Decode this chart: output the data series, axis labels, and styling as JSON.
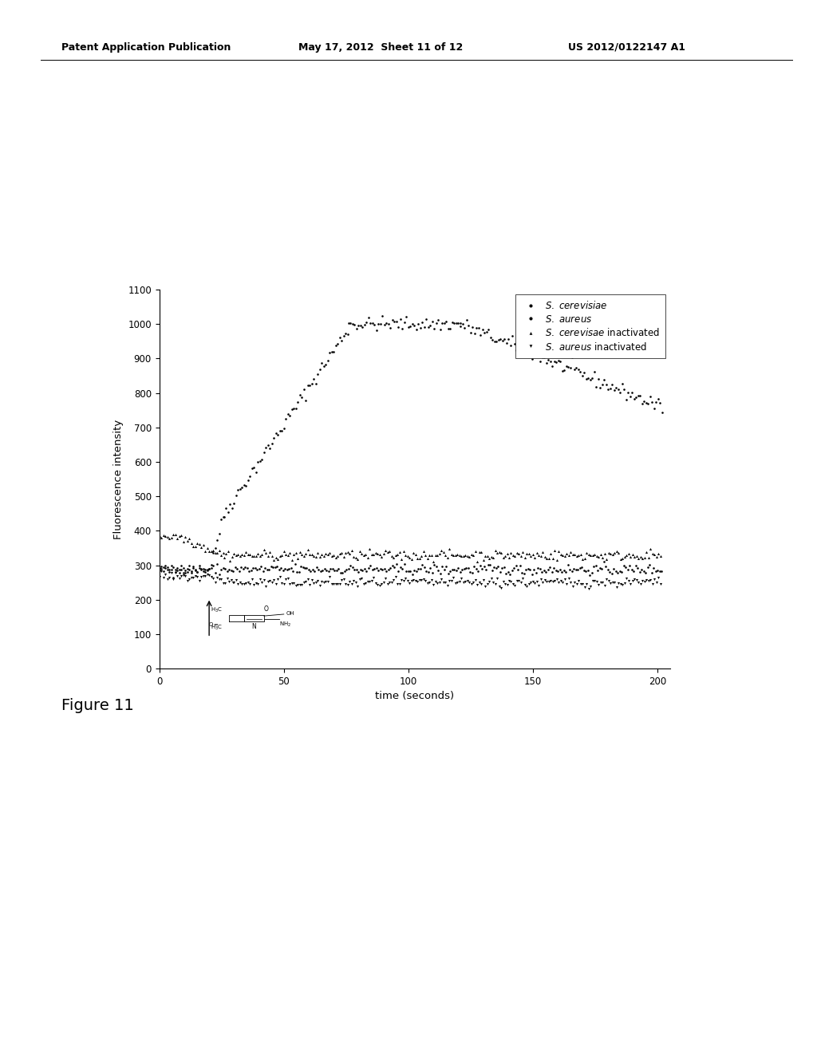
{
  "header_left": "Patent Application Publication",
  "header_mid": "May 17, 2012  Sheet 11 of 12",
  "header_right": "US 2012/0122147 A1",
  "figure_label": "Figure 11",
  "xlabel": "time (seconds)",
  "ylabel": "Fluorescence intensity",
  "xlim": [
    0,
    205
  ],
  "ylim": [
    0,
    1100
  ],
  "yticks": [
    0,
    100,
    200,
    300,
    400,
    500,
    600,
    700,
    800,
    900,
    1000,
    1100
  ],
  "xticks": [
    0,
    50,
    100,
    150,
    200
  ],
  "background_color": "#ffffff"
}
